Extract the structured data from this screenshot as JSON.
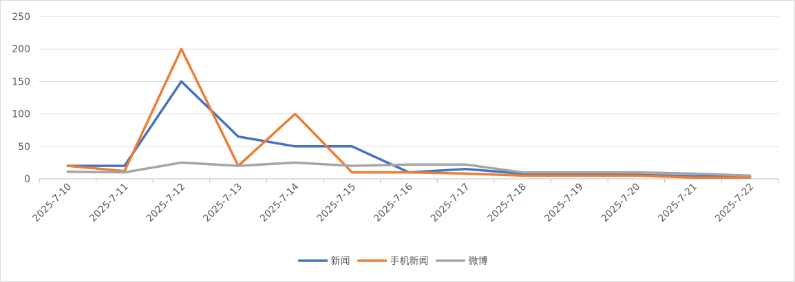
{
  "chart_data": {
    "type": "line",
    "title": "",
    "xlabel": "",
    "ylabel": "",
    "categories": [
      "2025-7-10",
      "2025-7-11",
      "2025-7-12",
      "2025-7-13",
      "2025-7-14",
      "2025-7-15",
      "2025-7-16",
      "2025-7-17",
      "2025-7-18",
      "2025-7-19",
      "2025-7-20",
      "2025-7-21",
      "2025-7-22"
    ],
    "ylim": [
      0,
      250
    ],
    "yticks": [
      0,
      50,
      100,
      150,
      200,
      250
    ],
    "grid": true,
    "legend_position": "bottom",
    "series": [
      {
        "name": "新闻",
        "color": "#4472C4",
        "values": [
          20,
          20,
          150,
          65,
          50,
          50,
          10,
          15,
          8,
          7,
          6,
          4,
          3
        ]
      },
      {
        "name": "手机新闻",
        "color": "#ED7D31",
        "values": [
          20,
          12,
          200,
          20,
          100,
          10,
          10,
          8,
          5,
          5,
          5,
          2,
          2
        ]
      },
      {
        "name": "微博",
        "color": "#A5A5A5",
        "values": [
          11,
          10,
          25,
          20,
          25,
          20,
          22,
          22,
          10,
          10,
          10,
          8,
          5
        ]
      }
    ]
  }
}
